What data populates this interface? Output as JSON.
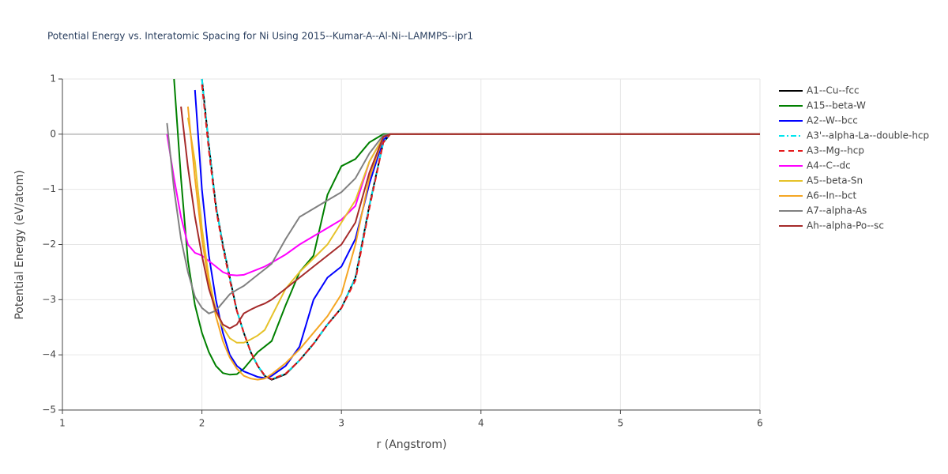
{
  "chart_data": {
    "type": "line",
    "title": "Potential Energy vs. Interatomic Spacing for Ni Using 2015--Kumar-A--Al-Ni--LAMMPS--ipr1",
    "x_label": "r (Angstrom)",
    "y_label": "Potential Energy (eV/atom)",
    "x": [
      1.7,
      1.75,
      1.8,
      1.85,
      1.9,
      1.95,
      2.0,
      2.05,
      2.1,
      2.15,
      2.2,
      2.25,
      2.3,
      2.35,
      2.4,
      2.45,
      2.5,
      2.6,
      2.7,
      2.8,
      2.9,
      3.0,
      3.1,
      3.2,
      3.3,
      3.35,
      3.4,
      4,
      5,
      6
    ],
    "xlim": [
      1,
      6
    ],
    "xticks": [
      1,
      2,
      3,
      4,
      5,
      6
    ],
    "ylim": [
      -5,
      1
    ],
    "yticks": [
      {
        "value": -5,
        "label": "−5"
      },
      {
        "value": -4,
        "label": "−4"
      },
      {
        "value": -3,
        "label": "−3"
      },
      {
        "value": -2,
        "label": "−2"
      },
      {
        "value": -1,
        "label": "−1"
      },
      0,
      1
    ],
    "grid": true,
    "series": [
      {
        "name": "A1--Cu--fcc",
        "color": "#000000",
        "dash": "solid",
        "values": [
          null,
          null,
          null,
          null,
          null,
          null,
          1.0,
          -0.2,
          -1.3,
          -2.0,
          -2.6,
          -3.2,
          -3.6,
          -3.95,
          -4.2,
          -4.38,
          -4.45,
          -4.35,
          -4.1,
          -3.8,
          -3.45,
          -3.15,
          -2.6,
          -1.3,
          -0.15,
          0,
          0,
          0,
          0,
          0
        ]
      },
      {
        "name": "A15--beta-W",
        "color": "#008000",
        "dash": "solid",
        "values": [
          null,
          null,
          1.0,
          -0.8,
          -2.3,
          -3.1,
          -3.6,
          -3.95,
          -4.2,
          -4.33,
          -4.36,
          -4.35,
          -4.25,
          -4.1,
          -3.95,
          -3.85,
          -3.75,
          -3.1,
          -2.5,
          -2.2,
          -1.1,
          -0.58,
          -0.45,
          -0.15,
          0,
          0,
          0,
          0,
          0,
          0
        ]
      },
      {
        "name": "A2--W--bcc",
        "color": "#0000ff",
        "dash": "solid",
        "values": [
          null,
          null,
          null,
          null,
          null,
          0.8,
          -1.0,
          -2.2,
          -3.0,
          -3.6,
          -4.0,
          -4.2,
          -4.3,
          -4.35,
          -4.4,
          -4.42,
          -4.38,
          -4.2,
          -3.85,
          -3.0,
          -2.6,
          -2.4,
          -1.9,
          -0.9,
          -0.1,
          0,
          0,
          0,
          0,
          0
        ]
      },
      {
        "name": "A3'--alpha-La--double-hcp",
        "color": "#00e5ee",
        "dash": "dashdot",
        "values": [
          null,
          null,
          null,
          null,
          null,
          null,
          1.0,
          -0.2,
          -1.3,
          -2.0,
          -2.6,
          -3.2,
          -3.6,
          -3.95,
          -4.2,
          -4.37,
          -4.44,
          -4.34,
          -4.1,
          -3.8,
          -3.45,
          -3.15,
          -2.6,
          -1.3,
          -0.15,
          0,
          0,
          0,
          0,
          0
        ]
      },
      {
        "name": "A3--Mg--hcp",
        "color": "#e41a1c",
        "dash": "dash",
        "values": [
          null,
          null,
          null,
          null,
          null,
          null,
          0.9,
          -0.3,
          -1.35,
          -2.05,
          -2.65,
          -3.2,
          -3.6,
          -3.95,
          -4.2,
          -4.37,
          -4.44,
          -4.34,
          -4.1,
          -3.8,
          -3.45,
          -3.15,
          -2.65,
          -1.35,
          -0.15,
          0,
          0,
          0,
          0,
          0
        ]
      },
      {
        "name": "A4--C--dc",
        "color": "#ff00ff",
        "dash": "solid",
        "values": [
          null,
          0.0,
          -0.8,
          -1.5,
          -2.0,
          -2.15,
          -2.2,
          -2.3,
          -2.4,
          -2.5,
          -2.55,
          -2.56,
          -2.55,
          -2.5,
          -2.45,
          -2.4,
          -2.33,
          -2.18,
          -2.0,
          -1.85,
          -1.7,
          -1.55,
          -1.3,
          -0.5,
          -0.05,
          0,
          0,
          0,
          0,
          0
        ]
      },
      {
        "name": "A5--beta-Sn",
        "color": "#e6c229",
        "dash": "solid",
        "values": [
          null,
          null,
          null,
          null,
          0.3,
          -0.5,
          -1.7,
          -2.6,
          -3.2,
          -3.5,
          -3.7,
          -3.78,
          -3.78,
          -3.72,
          -3.65,
          -3.55,
          -3.3,
          -2.8,
          -2.5,
          -2.25,
          -2.0,
          -1.6,
          -1.2,
          -0.5,
          -0.05,
          0,
          0,
          0,
          0,
          0
        ]
      },
      {
        "name": "A6--In--bct",
        "color": "#f5a623",
        "dash": "solid",
        "values": [
          null,
          null,
          null,
          null,
          0.5,
          -0.8,
          -1.9,
          -2.7,
          -3.3,
          -3.75,
          -4.05,
          -4.25,
          -4.38,
          -4.43,
          -4.45,
          -4.43,
          -4.35,
          -4.15,
          -3.9,
          -3.6,
          -3.3,
          -2.9,
          -2.0,
          -0.8,
          -0.05,
          0,
          0,
          0,
          0,
          0
        ]
      },
      {
        "name": "A7--alpha-As",
        "color": "#808080",
        "dash": "solid",
        "values": [
          null,
          0.2,
          -1.0,
          -1.9,
          -2.5,
          -2.95,
          -3.15,
          -3.25,
          -3.2,
          -3.05,
          -2.9,
          -2.82,
          -2.75,
          -2.65,
          -2.55,
          -2.45,
          -2.35,
          -1.9,
          -1.5,
          -1.35,
          -1.2,
          -1.05,
          -0.8,
          -0.35,
          -0.02,
          0,
          0,
          0,
          0,
          0
        ]
      },
      {
        "name": "Ah--alpha-Po--sc",
        "color": "#a52a2a",
        "dash": "solid",
        "values": [
          null,
          null,
          null,
          0.5,
          -0.6,
          -1.5,
          -2.2,
          -2.8,
          -3.2,
          -3.45,
          -3.52,
          -3.45,
          -3.25,
          -3.18,
          -3.12,
          -3.07,
          -3.0,
          -2.8,
          -2.6,
          -2.4,
          -2.2,
          -2.0,
          -1.6,
          -0.7,
          -0.05,
          0,
          0,
          0,
          0,
          0
        ]
      }
    ]
  }
}
